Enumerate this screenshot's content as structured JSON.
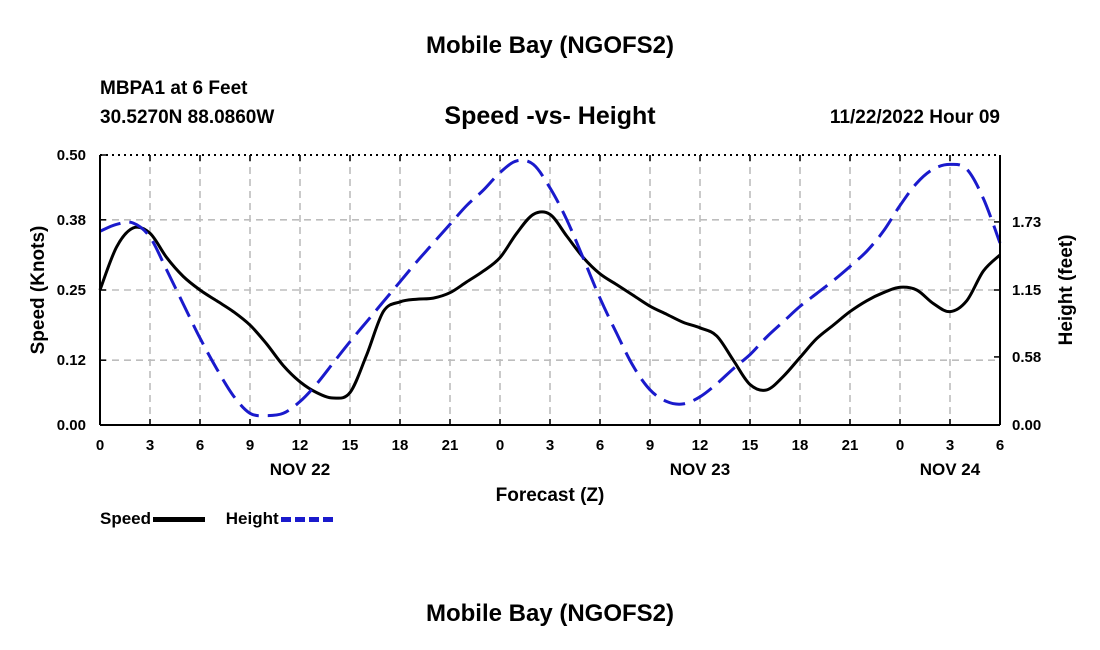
{
  "page": {
    "title_top": "Mobile Bay (NGOFS2)",
    "title_bottom": "Mobile Bay (NGOFS2)",
    "station": "MBPA1 at 6 Feet",
    "coords": "30.5270N  88.0860W",
    "timestamp": "11/22/2022 Hour 09"
  },
  "chart_data": {
    "type": "line",
    "title": "Speed -vs- Height",
    "xlabel": "Forecast (Z)",
    "ylabel": "Speed (Knots)",
    "y2label": "Height (feet)",
    "x_unit": "hours",
    "xlim": [
      0,
      54
    ],
    "ylim": [
      0,
      0.5
    ],
    "y2lim": [
      0,
      2.3
    ],
    "grid": true,
    "x_ticks": [
      0,
      3,
      6,
      9,
      12,
      15,
      18,
      21,
      24,
      27,
      30,
      33,
      36,
      39,
      42,
      45,
      48,
      51,
      54
    ],
    "x_tick_labels": [
      "0",
      "3",
      "6",
      "9",
      "12",
      "15",
      "18",
      "21",
      "0",
      "3",
      "6",
      "9",
      "12",
      "15",
      "18",
      "21",
      "0",
      "3",
      "6"
    ],
    "date_labels": [
      {
        "x": 12,
        "label": "NOV 22"
      },
      {
        "x": 36,
        "label": "NOV 23"
      },
      {
        "x": 51,
        "label": "NOV 24"
      }
    ],
    "y_ticks": [
      0,
      0.12,
      0.25,
      0.38,
      0.5
    ],
    "y_tick_labels": [
      "0.00",
      "0.12",
      "0.25",
      "0.38",
      "0.50"
    ],
    "y2_ticks": [
      0,
      0.58,
      1.15,
      1.73
    ],
    "y2_tick_labels": [
      "0.00",
      "0.58",
      "1.15",
      "1.73"
    ],
    "legend_position": "bottom-left",
    "series": [
      {
        "name": "Speed",
        "axis": "left",
        "color": "#000000",
        "style": "solid",
        "x": [
          0,
          1,
          2,
          3,
          4,
          5,
          6,
          7,
          8,
          9,
          10,
          11,
          12,
          13,
          14,
          15,
          16,
          17,
          18,
          19,
          20,
          21,
          22,
          23,
          24,
          25,
          26,
          27,
          28,
          29,
          30,
          31,
          32,
          33,
          34,
          35,
          36,
          37,
          38,
          39,
          40,
          41,
          42,
          43,
          44,
          45,
          46,
          47,
          48,
          49,
          50,
          51,
          52,
          53,
          54
        ],
        "values": [
          0.25,
          0.33,
          0.365,
          0.355,
          0.31,
          0.275,
          0.25,
          0.23,
          0.21,
          0.185,
          0.15,
          0.11,
          0.08,
          0.06,
          0.05,
          0.06,
          0.13,
          0.21,
          0.228,
          0.233,
          0.235,
          0.245,
          0.265,
          0.285,
          0.31,
          0.355,
          0.39,
          0.39,
          0.35,
          0.31,
          0.28,
          0.26,
          0.24,
          0.22,
          0.205,
          0.19,
          0.18,
          0.165,
          0.12,
          0.075,
          0.065,
          0.09,
          0.125,
          0.16,
          0.185,
          0.21,
          0.23,
          0.245,
          0.255,
          0.25,
          0.225,
          0.21,
          0.23,
          0.285,
          0.315
        ]
      },
      {
        "name": "Height",
        "axis": "right",
        "color": "#1a1acc",
        "style": "dashed",
        "x": [
          0,
          1,
          2,
          3,
          4,
          5,
          6,
          7,
          8,
          9,
          10,
          11,
          12,
          13,
          14,
          15,
          16,
          17,
          18,
          19,
          20,
          21,
          22,
          23,
          24,
          25,
          26,
          27,
          28,
          29,
          30,
          31,
          32,
          33,
          34,
          35,
          36,
          37,
          38,
          39,
          40,
          41,
          42,
          43,
          44,
          45,
          46,
          47,
          48,
          49,
          50,
          51,
          52,
          53,
          54
        ],
        "values": [
          1.65,
          1.71,
          1.72,
          1.6,
          1.32,
          1.03,
          0.74,
          0.48,
          0.25,
          0.1,
          0.08,
          0.1,
          0.2,
          0.35,
          0.53,
          0.71,
          0.88,
          1.05,
          1.22,
          1.39,
          1.55,
          1.71,
          1.87,
          2.0,
          2.15,
          2.25,
          2.22,
          2.02,
          1.75,
          1.42,
          1.08,
          0.78,
          0.5,
          0.3,
          0.2,
          0.18,
          0.24,
          0.35,
          0.48,
          0.6,
          0.75,
          0.88,
          1.01,
          1.12,
          1.23,
          1.35,
          1.48,
          1.65,
          1.87,
          2.06,
          2.18,
          2.22,
          2.18,
          1.93,
          1.55
        ]
      }
    ]
  }
}
